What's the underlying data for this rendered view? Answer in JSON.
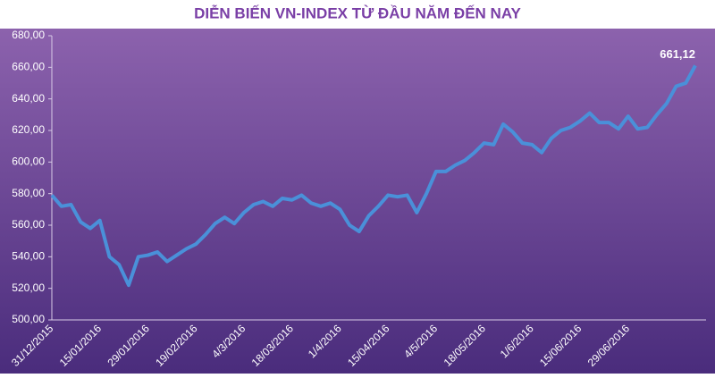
{
  "chart_data": {
    "type": "line",
    "title": "DIỄN BIẾN VN-INDEX TỪ ĐẦU NĂM ĐẾN NAY",
    "categories": [
      "31/12/2015",
      null,
      null,
      null,
      null,
      "15/01/2016",
      null,
      null,
      null,
      null,
      "29/01/2016",
      null,
      null,
      null,
      null,
      "19/02/2016",
      null,
      null,
      null,
      null,
      "4/3/2016",
      null,
      null,
      null,
      null,
      "18/03/2016",
      null,
      null,
      null,
      null,
      "1/4/2016",
      null,
      null,
      null,
      null,
      "15/04/2016",
      null,
      null,
      null,
      null,
      "4/5/2016",
      null,
      null,
      null,
      null,
      "18/05/2016",
      null,
      null,
      null,
      null,
      "1/6/2016",
      null,
      null,
      null,
      null,
      "15/06/2016",
      null,
      null,
      null,
      null,
      "29/06/2016",
      null,
      null,
      null,
      null,
      null,
      null,
      null
    ],
    "series": [
      {
        "color": "#4a90d9",
        "values": [
          579,
          572,
          573,
          562,
          558,
          563,
          540,
          535,
          522,
          540,
          541,
          543,
          537,
          541,
          545,
          548,
          554,
          561,
          565,
          561,
          568,
          573,
          575,
          572,
          577,
          576,
          579,
          574,
          572,
          574,
          570,
          560,
          556,
          566,
          572,
          579,
          578,
          579,
          568,
          580,
          594,
          594,
          598,
          601,
          606,
          612,
          611,
          624,
          619,
          612,
          611,
          606,
          615,
          620,
          622,
          626,
          631,
          625,
          625,
          621,
          629,
          621,
          622,
          630,
          637,
          648,
          650,
          661.12
        ],
        "value_labels": [
          null,
          null,
          null,
          null,
          null,
          null,
          null,
          null,
          null,
          null,
          null,
          null,
          null,
          null,
          null,
          null,
          null,
          null,
          null,
          null,
          null,
          null,
          null,
          null,
          null,
          null,
          null,
          null,
          null,
          null,
          null,
          null,
          null,
          null,
          null,
          null,
          null,
          null,
          null,
          null,
          null,
          null,
          null,
          null,
          null,
          null,
          null,
          null,
          null,
          null,
          null,
          null,
          null,
          null,
          null,
          null,
          null,
          null,
          null,
          null,
          null,
          null,
          null,
          null,
          null,
          null,
          null,
          "661,12"
        ]
      }
    ],
    "ylim": [
      500,
      680
    ],
    "yticks": [
      {
        "value": 500,
        "label": "500,00"
      },
      {
        "value": 520,
        "label": "520,00"
      },
      {
        "value": 540,
        "label": "540,00"
      },
      {
        "value": 560,
        "label": "560,00"
      },
      {
        "value": 580,
        "label": "580,00"
      },
      {
        "value": 600,
        "label": "600,00"
      },
      {
        "value": 620,
        "label": "620,00"
      },
      {
        "value": 640,
        "label": "640,00"
      },
      {
        "value": 660,
        "label": "660,00"
      },
      {
        "value": 680,
        "label": "680,00"
      }
    ],
    "grid": false
  }
}
